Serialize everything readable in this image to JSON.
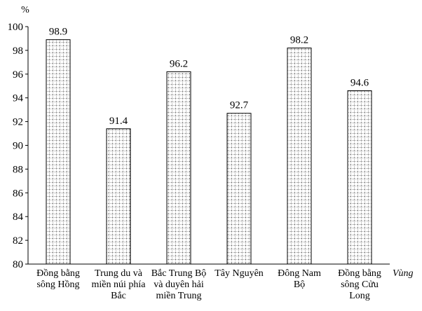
{
  "chart_data": {
    "type": "bar",
    "title": "",
    "ylabel": "%",
    "xlabel": "Vùng",
    "ylim": [
      80,
      100
    ],
    "yticks": [
      80,
      82,
      84,
      86,
      88,
      90,
      92,
      94,
      96,
      98,
      100
    ],
    "grid": false,
    "categories": [
      [
        "Đồng bằng",
        "sông Hồng"
      ],
      [
        "Trung du và",
        "miền núi phía",
        "Bắc"
      ],
      [
        "Bắc Trung Bộ",
        "và duyên hải",
        "miền Trung"
      ],
      [
        "Tây Nguyên"
      ],
      [
        "Đông Nam",
        "Bộ"
      ],
      [
        "Đồng bằng",
        "sông Cửu",
        "Long"
      ]
    ],
    "values": [
      98.9,
      91.4,
      96.2,
      92.7,
      98.2,
      94.6
    ],
    "value_labels": [
      "98.9",
      "91.4",
      "96.2",
      "92.7",
      "98.2",
      "94.6"
    ],
    "bar_fill": "dotted grid pattern",
    "bar_color": "#000000"
  }
}
